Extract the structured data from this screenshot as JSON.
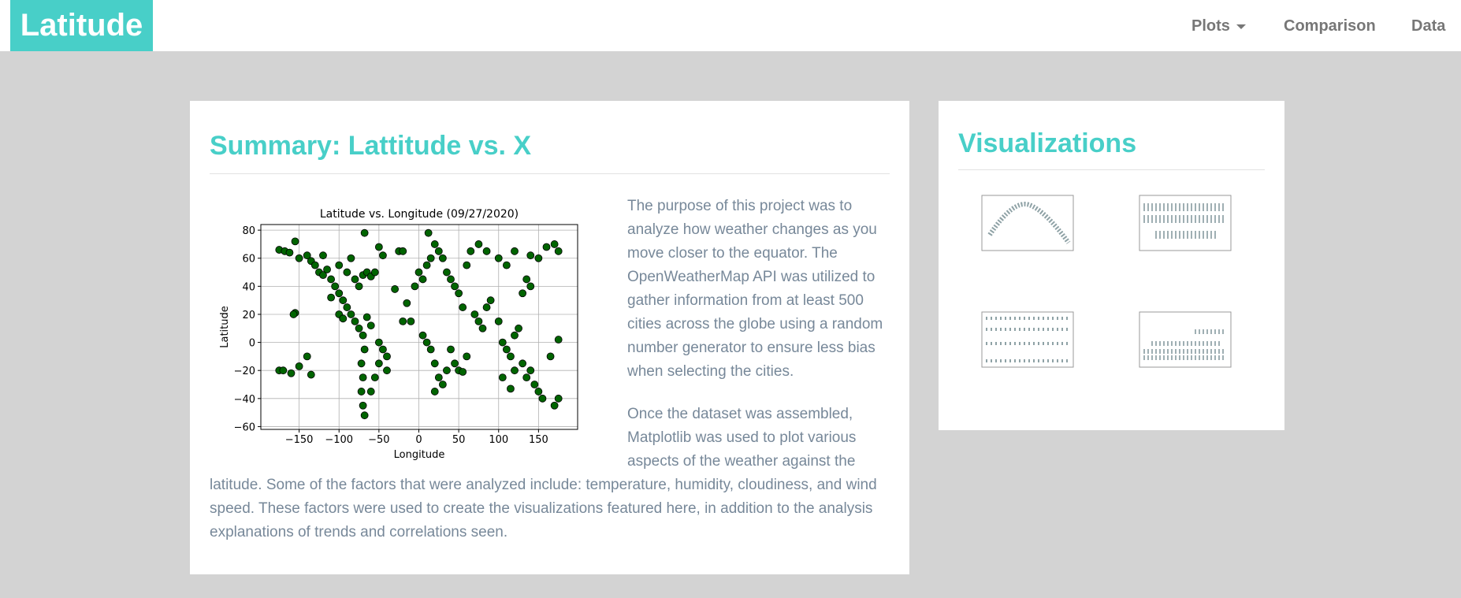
{
  "navbar": {
    "brand": "Latitude",
    "links": [
      "Plots",
      "Comparison",
      "Data"
    ]
  },
  "summary": {
    "title": "Summary: Lattitude vs. X",
    "paragraphs": [
      "The purpose of this project was to analyze how weather changes as you move closer to the equator. The OpenWeatherMap API was utilized to gather information from at least 500 cities across the globe using a random number generator to ensure less bias when selecting the cities.",
      "Once the dataset was assembled, Matplotlib was used to plot various aspects of the weather against the latitude. Some of the factors that were analyzed include: temperature, humidity, cloudiness, and wind speed. These factors were used to create the visualizations featured here, in addition to the analysis explanations of trends and correlations seen."
    ]
  },
  "chart_data": {
    "type": "scatter",
    "title": "Latitude vs. Longitude (09/27/2020)",
    "x_label": "Longitude",
    "y_label": "Latitude",
    "color": "#006400",
    "edge_color": "#000000",
    "grid": true,
    "xlim": [
      -198,
      199
    ],
    "ylim": [
      -62,
      84
    ],
    "xticks": [
      {
        "value": -150,
        "label": "−150"
      },
      {
        "value": -100,
        "label": "−100"
      },
      {
        "value": -50,
        "label": "−50"
      },
      0,
      50,
      100,
      150
    ],
    "yticks": [
      {
        "value": -60,
        "label": "−60"
      },
      {
        "value": -40,
        "label": "−40"
      },
      {
        "value": -20,
        "label": "−20"
      },
      0,
      20,
      40,
      60,
      80
    ],
    "x": [
      -175,
      -170,
      -160,
      -150,
      -140,
      -135,
      -175,
      -168,
      -162,
      -155,
      -150,
      -155,
      -157,
      -135,
      -130,
      -125,
      -120,
      -115,
      -110,
      -105,
      -100,
      -95,
      -90,
      -85,
      -80,
      -75,
      -70,
      -68,
      -72,
      -70,
      -72,
      -70,
      -68,
      -60,
      -55,
      -50,
      -45,
      -40,
      -50,
      -65,
      -60,
      -75,
      -80,
      -70,
      -65,
      -60,
      -55,
      -50,
      -45,
      -68,
      -120,
      -140,
      -100,
      -90,
      -85,
      -110,
      -100,
      -95,
      -25,
      -20,
      -15,
      -10,
      -5,
      0,
      5,
      10,
      15,
      20,
      25,
      30,
      35,
      40,
      45,
      50,
      55,
      5,
      10,
      15,
      20,
      25,
      30,
      20,
      35,
      40,
      45,
      50,
      55,
      60,
      70,
      75,
      80,
      85,
      90,
      100,
      105,
      110,
      115,
      120,
      125,
      130,
      135,
      140,
      145,
      150,
      155,
      170,
      175,
      100,
      110,
      120,
      140,
      150,
      160,
      170,
      175,
      105,
      115,
      120,
      130,
      140,
      135,
      65,
      75,
      85,
      60,
      -30,
      -40,
      175,
      165,
      12,
      -20
    ],
    "y": [
      -20,
      -20,
      -22,
      -17,
      -10,
      -23,
      66,
      65,
      64,
      72,
      60,
      21,
      20,
      58,
      55,
      50,
      48,
      52,
      45,
      40,
      35,
      30,
      25,
      20,
      15,
      10,
      5,
      -5,
      -15,
      -25,
      -35,
      -45,
      -52,
      -35,
      -25,
      -15,
      -5,
      -10,
      0,
      18,
      12,
      40,
      45,
      48,
      50,
      47,
      50,
      68,
      62,
      78,
      62,
      62,
      55,
      50,
      60,
      32,
      20,
      17,
      65,
      65,
      28,
      15,
      40,
      50,
      45,
      55,
      60,
      70,
      65,
      60,
      50,
      45,
      40,
      35,
      25,
      5,
      0,
      -5,
      -15,
      -25,
      -30,
      -35,
      -20,
      -5,
      -15,
      -20,
      -21,
      -10,
      20,
      15,
      10,
      25,
      30,
      15,
      0,
      -5,
      -10,
      5,
      10,
      35,
      45,
      40,
      -30,
      -35,
      -40,
      -45,
      -40,
      60,
      55,
      65,
      62,
      60,
      68,
      70,
      65,
      -25,
      -33,
      -20,
      -15,
      -20,
      -25,
      65,
      70,
      65,
      55,
      38,
      -20,
      2,
      -10,
      78,
      15
    ]
  },
  "visualizations": {
    "title": "Visualizations"
  }
}
